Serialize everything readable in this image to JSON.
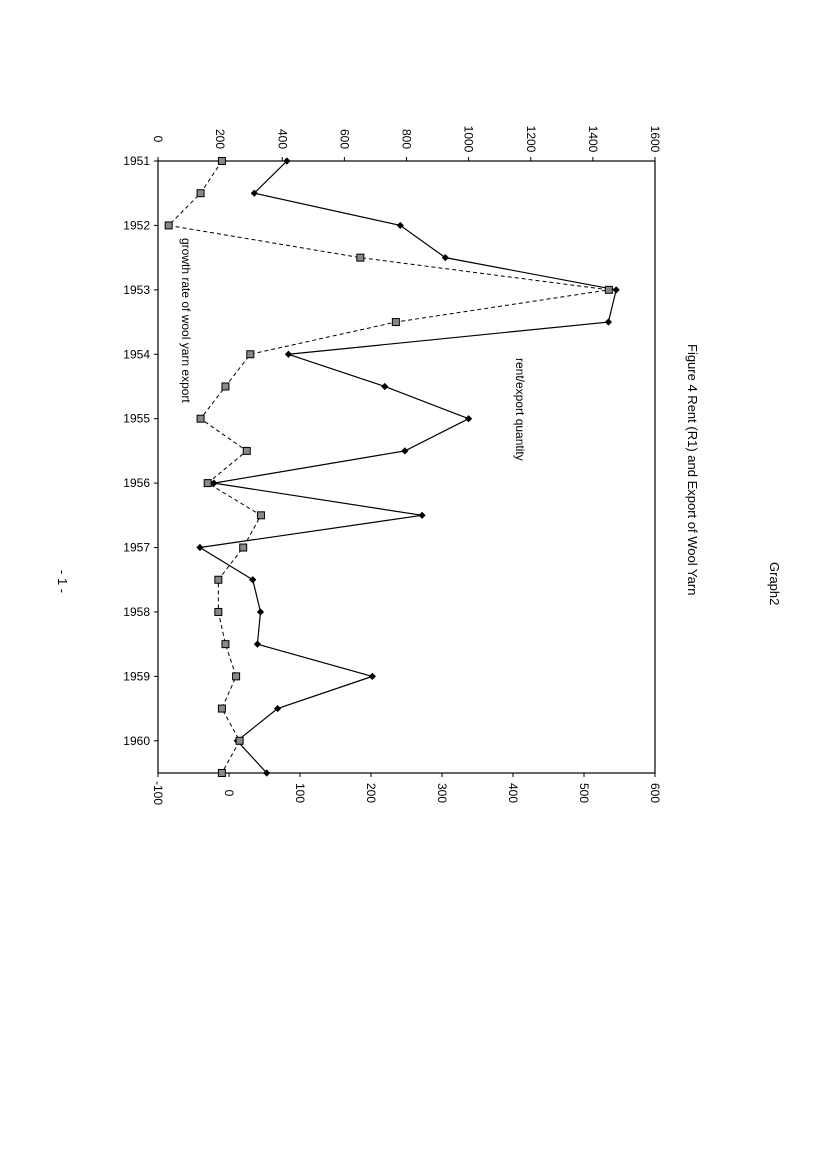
{
  "page": {
    "header_label": "Graph2",
    "footer": "- 1 -"
  },
  "chart_data": {
    "type": "line",
    "title": "Figure 4 Rent (R1) and Export of Wool Yarn",
    "x": [
      1951.0,
      1951.5,
      1952.0,
      1952.5,
      1953.0,
      1953.5,
      1954.0,
      1954.5,
      1955.0,
      1955.5,
      1956.0,
      1956.5,
      1957.0,
      1957.5,
      1958.0,
      1958.5,
      1959.0,
      1959.5,
      1960.0,
      1960.5
    ],
    "x_ticks": [
      "1951",
      "1952",
      "1953",
      "1954",
      "1955",
      "1956",
      "1957",
      "1958",
      "1959",
      "1960"
    ],
    "x_range": [
      1951,
      1960.5
    ],
    "y_left": {
      "range": [
        0,
        1600
      ],
      "ticks": [
        "0",
        "200",
        "400",
        "600",
        "800",
        "1000",
        "1200",
        "1400",
        "1600"
      ]
    },
    "y_right": {
      "range": [
        -100,
        600
      ],
      "ticks": [
        "-100",
        "0",
        "100",
        "200",
        "300",
        "400",
        "500",
        "600"
      ]
    },
    "grid": false,
    "series": [
      {
        "name": "rent/export quantity",
        "axis": "left",
        "marker": "diamond",
        "line": "solid",
        "values": [
          415,
          310,
          780,
          925,
          1475,
          1450,
          420,
          730,
          1000,
          795,
          180,
          850,
          135,
          305,
          330,
          320,
          690,
          385,
          255,
          350
        ]
      },
      {
        "name": "growth rate of wool yarn export",
        "axis": "right",
        "marker": "square",
        "line": "dashed",
        "values": [
          -10,
          -40,
          -85,
          185,
          535,
          235,
          30,
          -5,
          -40,
          25,
          -30,
          45,
          20,
          -15,
          -15,
          -5,
          10,
          -10,
          15,
          -10
        ]
      }
    ]
  }
}
